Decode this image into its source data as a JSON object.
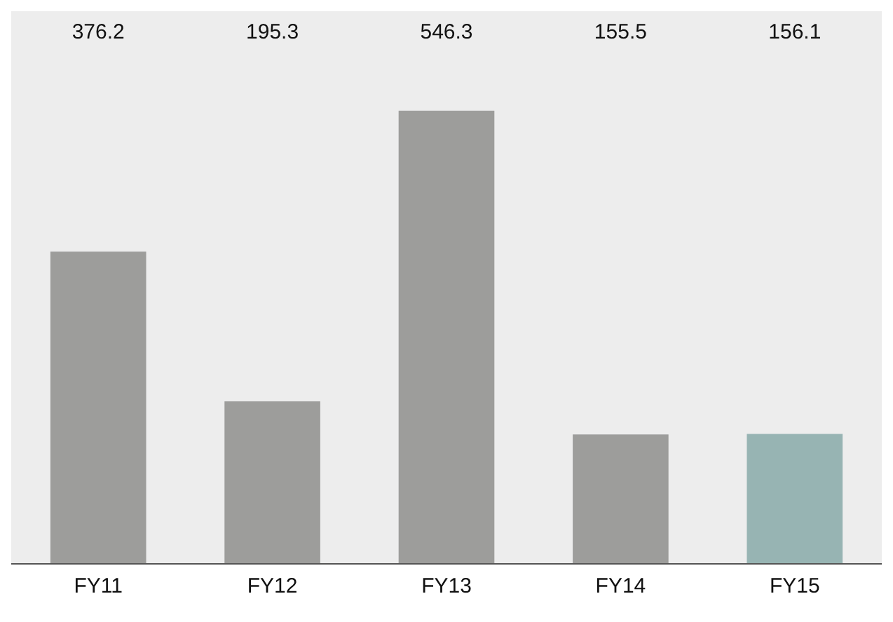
{
  "chart_data": {
    "type": "bar",
    "categories": [
      "FY11",
      "FY12",
      "FY13",
      "FY14",
      "FY15"
    ],
    "values": [
      376.2,
      195.3,
      546.3,
      155.5,
      156.1
    ],
    "colors": [
      "#9d9d9b",
      "#9d9d9b",
      "#9d9d9b",
      "#9d9d9b",
      "#97b4b3"
    ],
    "data_labels": true,
    "grid": false,
    "legend": false
  }
}
